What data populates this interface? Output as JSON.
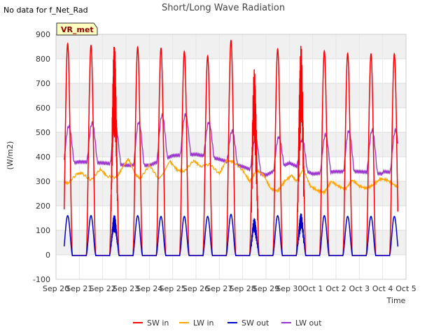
{
  "header": {
    "no_data_note": "No data for f_Net_Rad",
    "site_badge": "VR_met"
  },
  "chart_data": {
    "type": "line",
    "title": "Short/Long Wave Radiation",
    "xlabel": "Time",
    "ylabel": "(W/m2)",
    "ylim": [
      -100,
      900
    ],
    "yticks": [
      -100,
      0,
      100,
      200,
      300,
      400,
      500,
      600,
      700,
      800,
      900
    ],
    "xlim": [
      0,
      15
    ],
    "x_tick_labels": [
      "Sep 20",
      "Sep 21",
      "Sep 22",
      "Sep 23",
      "Sep 24",
      "Sep 25",
      "Sep 26",
      "Sep 27",
      "Sep 28",
      "Sep 29",
      "Sep 30",
      "Oct 1",
      "Oct 2",
      "Oct 3",
      "Oct 4",
      "Oct 5"
    ],
    "grid": true,
    "legend": "bottom",
    "series": [
      {
        "name": "SW in",
        "color": "#ff0000",
        "daily_peaks": [
          862,
          855,
          870,
          848,
          843,
          830,
          812,
          875,
          760,
          840,
          858,
          832,
          822,
          820
        ],
        "start_day": 0.35,
        "end_day": 14.65
      },
      {
        "name": "LW in",
        "color": "#ffa500",
        "x": [
          0.35,
          0.5,
          0.9,
          1.1,
          1.5,
          1.9,
          2.2,
          2.6,
          2.9,
          3.1,
          3.4,
          3.6,
          4.0,
          4.4,
          4.9,
          5.2,
          5.5,
          5.9,
          6.2,
          6.6,
          7.0,
          7.3,
          7.6,
          8.0,
          8.3,
          8.6,
          8.9,
          9.2,
          9.5,
          9.8,
          10.1,
          10.3,
          10.6,
          10.9,
          11.2,
          11.5,
          11.8,
          12.1,
          12.4,
          12.7,
          13.0,
          13.3,
          13.6,
          13.9,
          14.2,
          14.5,
          14.65
        ],
        "values": [
          298,
          292,
          330,
          333,
          305,
          350,
          320,
          315,
          365,
          392,
          330,
          310,
          365,
          310,
          380,
          345,
          340,
          385,
          360,
          370,
          330,
          385,
          380,
          345,
          300,
          345,
          325,
          270,
          260,
          300,
          325,
          300,
          350,
          280,
          262,
          255,
          300,
          280,
          268,
          305,
          280,
          272,
          285,
          310,
          305,
          285,
          275
        ]
      },
      {
        "name": "SW out",
        "color": "#0000cd",
        "daily_peaks": [
          160,
          160,
          165,
          160,
          157,
          157,
          157,
          165,
          150,
          160,
          170,
          160,
          157,
          157
        ],
        "start_day": 0.35,
        "end_day": 14.65
      },
      {
        "name": "LW out",
        "color": "#9932cc",
        "daily_peaks": [
          525,
          537,
          525,
          540,
          570,
          572,
          540,
          505,
          475,
          480,
          470,
          490,
          505,
          508
        ],
        "night_levels": [
          360,
          380,
          375,
          365,
          365,
          405,
          410,
          390,
          360,
          325,
          375,
          330,
          340,
          340,
          330
        ],
        "start_day": 0.35,
        "end_day": 14.65
      }
    ]
  }
}
